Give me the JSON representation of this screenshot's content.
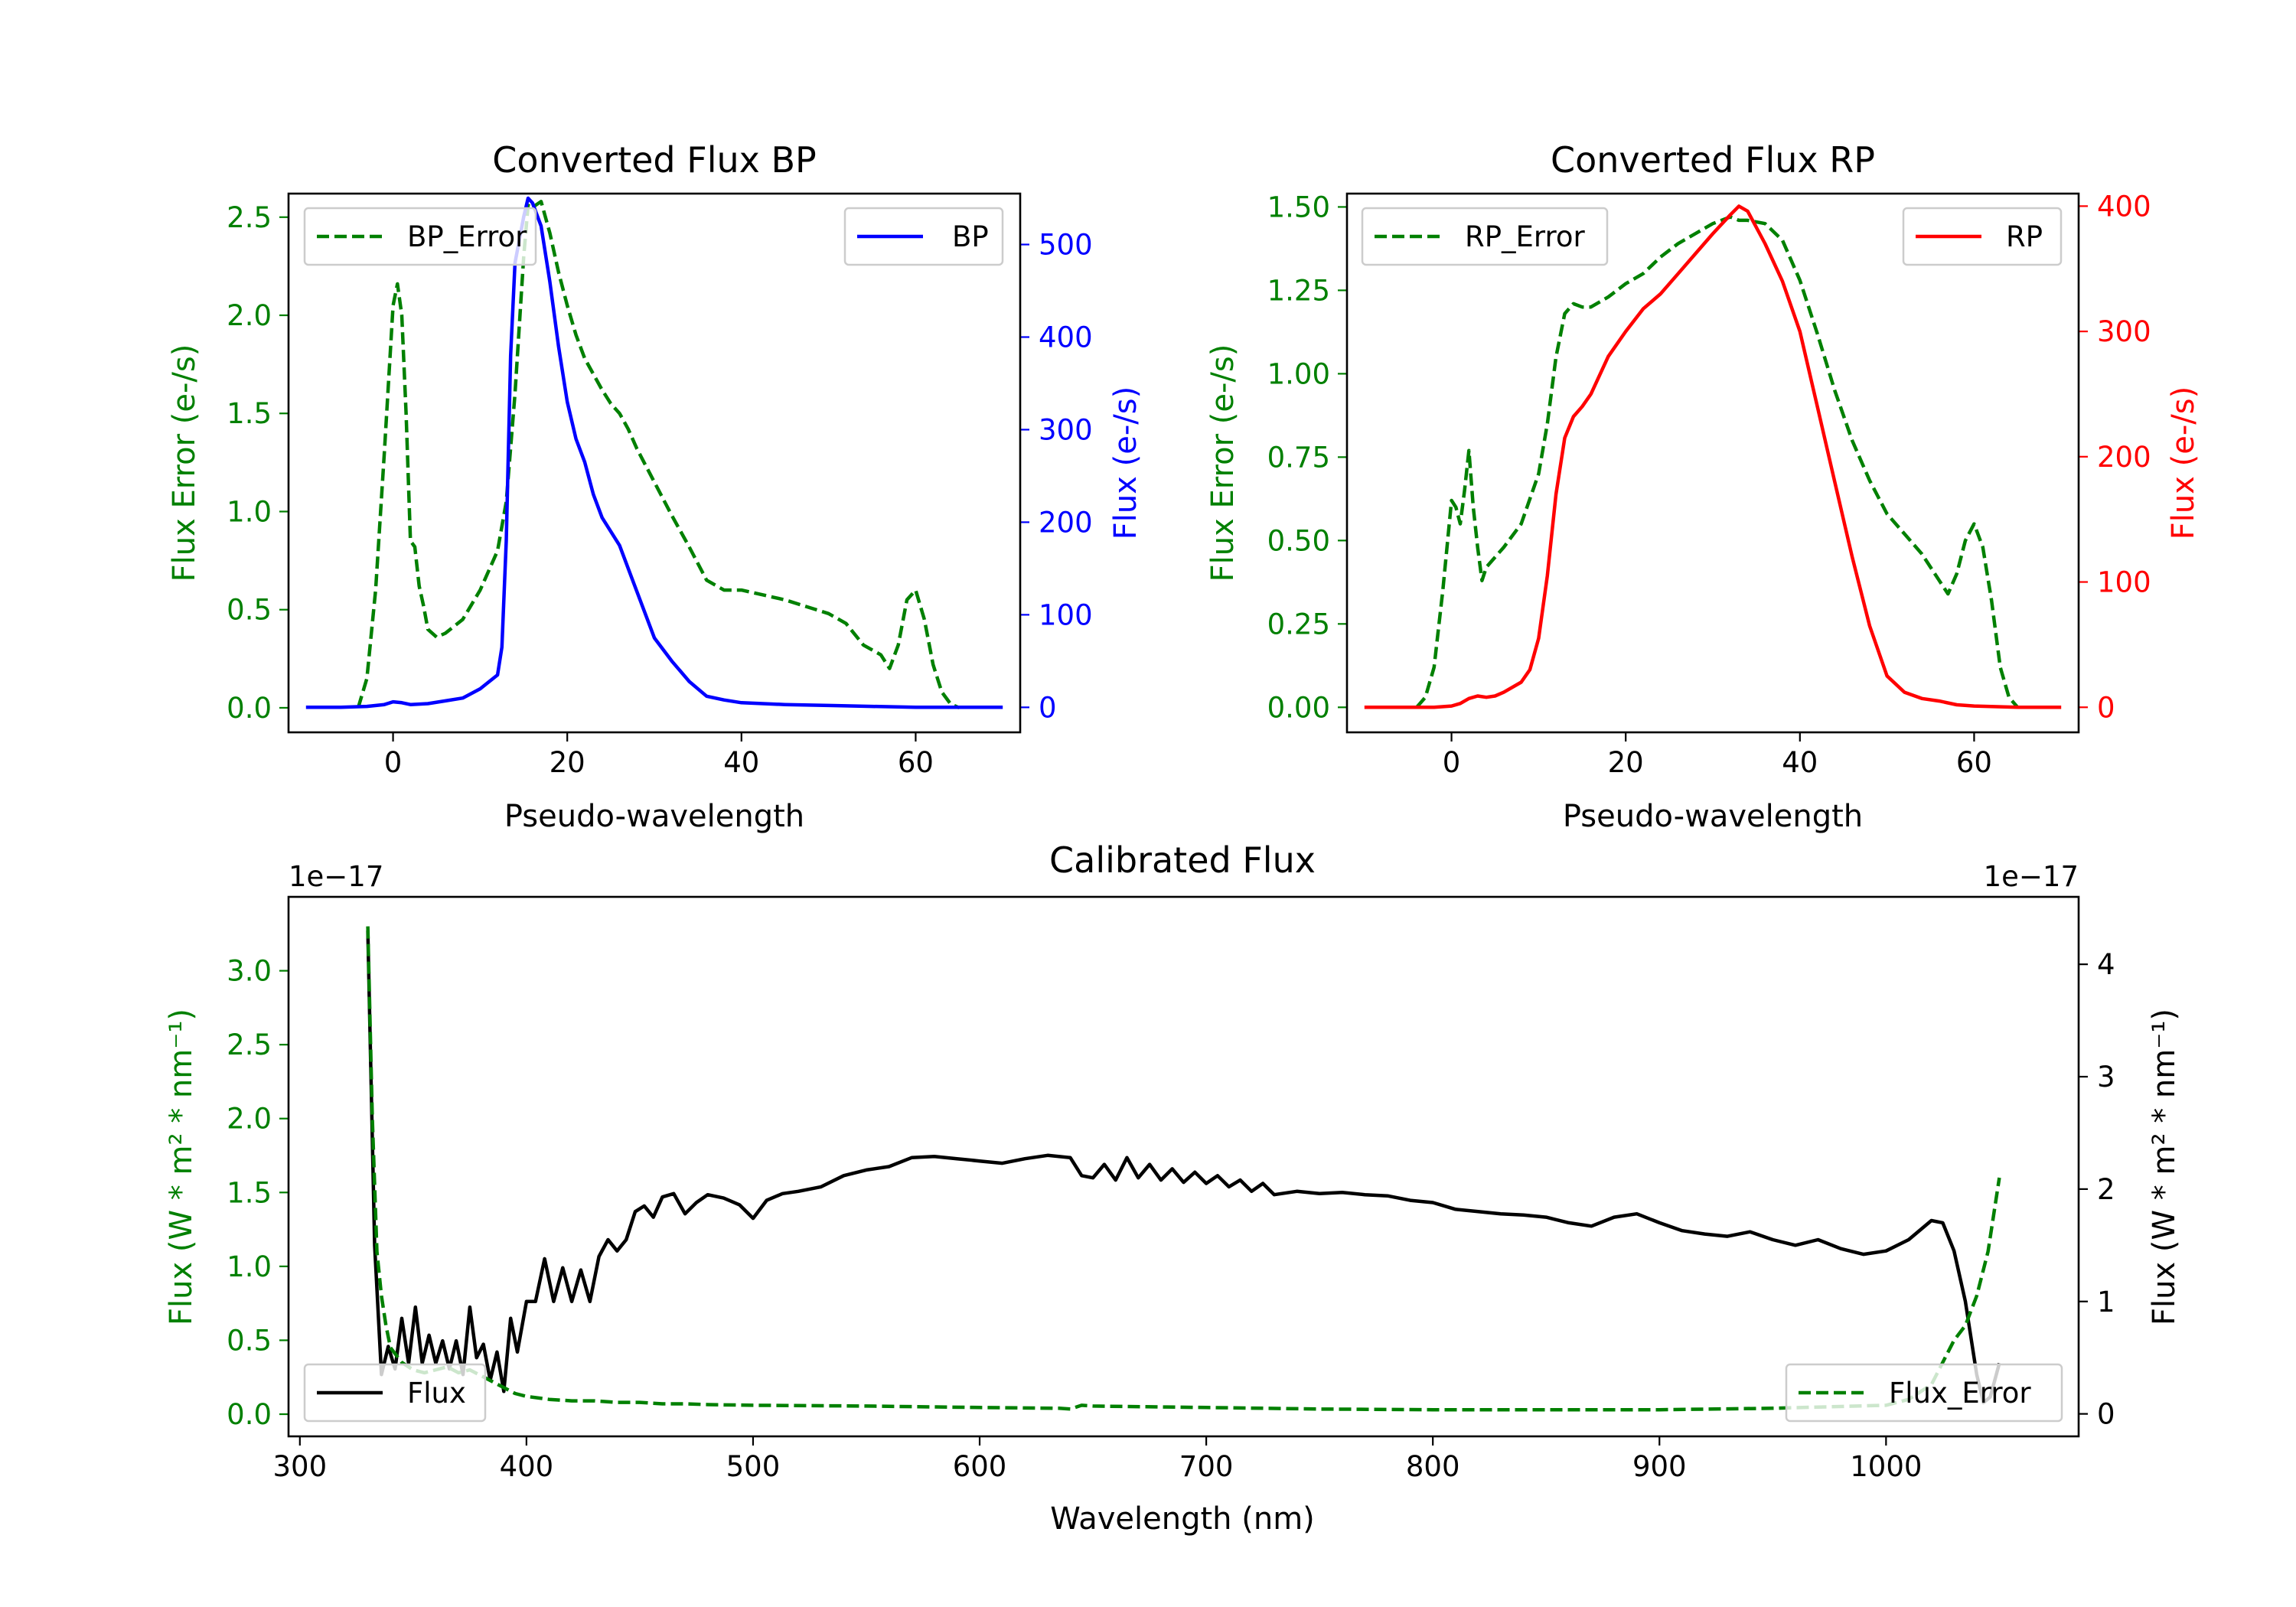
{
  "colors": {
    "green": "#008000",
    "blue": "#0000ff",
    "red": "#ff0000",
    "black": "#000000"
  },
  "chart_data": [
    {
      "id": "bp",
      "type": "line",
      "title": "Converted Flux BP",
      "xlabel": "Pseudo-wavelength",
      "xlim": [
        -12,
        72
      ],
      "xticks": [
        0,
        20,
        40,
        60
      ],
      "left_axis": {
        "label": "Flux Error (e-/s)",
        "color": "#008000",
        "ylim": [
          -0.125,
          2.62
        ],
        "ticks": [
          0.0,
          0.5,
          1.0,
          1.5,
          2.0,
          2.5
        ],
        "tick_labels": [
          "0.0",
          "0.5",
          "1.0",
          "1.5",
          "2.0",
          "2.5"
        ]
      },
      "right_axis": {
        "label": "Flux (e-/s)",
        "color": "#0000ff",
        "ylim": [
          -27,
          555
        ],
        "ticks": [
          0,
          100,
          200,
          300,
          400,
          500
        ],
        "tick_labels": [
          "0",
          "100",
          "200",
          "300",
          "400",
          "500"
        ]
      },
      "series": [
        {
          "name": "BP_Error",
          "axis": "left",
          "style": "dashed",
          "color": "#008000",
          "legend": "top-left",
          "x": [
            -4,
            -3,
            -2,
            -1,
            0,
            0.5,
            1,
            1.5,
            2,
            2.5,
            3,
            3.5,
            4,
            5,
            6,
            8,
            10,
            12,
            13,
            14,
            15,
            15.5,
            16,
            17,
            18,
            19,
            20,
            21,
            22,
            23,
            24,
            25,
            26,
            27,
            28,
            30,
            32,
            34,
            36,
            38,
            40,
            45,
            50,
            52,
            54,
            56,
            57,
            58,
            59,
            60,
            61,
            62,
            63,
            64,
            65
          ],
          "y": [
            0.0,
            0.15,
            0.6,
            1.3,
            2.05,
            2.16,
            2.0,
            1.5,
            0.85,
            0.82,
            0.62,
            0.52,
            0.4,
            0.36,
            0.38,
            0.45,
            0.6,
            0.8,
            1.05,
            1.6,
            2.3,
            2.56,
            2.55,
            2.58,
            2.42,
            2.22,
            2.05,
            1.9,
            1.78,
            1.7,
            1.62,
            1.55,
            1.5,
            1.42,
            1.32,
            1.15,
            0.98,
            0.82,
            0.65,
            0.6,
            0.6,
            0.55,
            0.48,
            0.43,
            0.32,
            0.27,
            0.2,
            0.32,
            0.55,
            0.6,
            0.45,
            0.22,
            0.08,
            0.02,
            0.0
          ]
        },
        {
          "name": "BP",
          "axis": "right",
          "style": "solid",
          "color": "#0000ff",
          "legend": "top-right",
          "x": [
            -10,
            -6,
            -3,
            -1,
            0,
            1,
            2,
            4,
            6,
            8,
            10,
            12,
            12.5,
            13,
            13.5,
            14,
            15,
            15.5,
            16,
            17,
            18,
            19,
            20,
            21,
            22,
            23,
            24,
            26,
            28,
            30,
            32,
            34,
            36,
            38,
            40,
            45,
            50,
            55,
            60,
            65,
            70
          ],
          "y": [
            0,
            0,
            1,
            3,
            6,
            5,
            3,
            4,
            7,
            10,
            20,
            35,
            65,
            180,
            380,
            480,
            530,
            550,
            545,
            520,
            460,
            390,
            330,
            290,
            265,
            230,
            205,
            175,
            125,
            75,
            50,
            28,
            12,
            8,
            5,
            3,
            2,
            1,
            0,
            0,
            0
          ]
        }
      ]
    },
    {
      "id": "rp",
      "type": "line",
      "title": "Converted Flux RP",
      "xlabel": "Pseudo-wavelength",
      "xlim": [
        -12,
        72
      ],
      "xticks": [
        0,
        20,
        40,
        60
      ],
      "left_axis": {
        "label": "Flux Error (e-/s)",
        "color": "#008000",
        "ylim": [
          -0.075,
          1.54
        ],
        "ticks": [
          0.0,
          0.25,
          0.5,
          0.75,
          1.0,
          1.25,
          1.5
        ],
        "tick_labels": [
          "0.00",
          "0.25",
          "0.50",
          "0.75",
          "1.00",
          "1.25",
          "1.50"
        ]
      },
      "right_axis": {
        "label": "Flux (e-/s)",
        "color": "#ff0000",
        "ylim": [
          -20,
          410
        ],
        "ticks": [
          0,
          100,
          200,
          300,
          400
        ],
        "tick_labels": [
          "0",
          "100",
          "200",
          "300",
          "400"
        ]
      },
      "series": [
        {
          "name": "RP_Error",
          "axis": "left",
          "style": "dashed",
          "color": "#008000",
          "legend": "top-left",
          "x": [
            -4,
            -3,
            -2,
            -1,
            0,
            0.5,
            1,
            1.5,
            2,
            2.5,
            3,
            3.5,
            4,
            5,
            6,
            8,
            10,
            11,
            12,
            13,
            14,
            15,
            16,
            18,
            20,
            22,
            24,
            26,
            28,
            30,
            32,
            33,
            34,
            36,
            38,
            40,
            42,
            44,
            46,
            48,
            50,
            52,
            54,
            56,
            57,
            58,
            59,
            60,
            61,
            62,
            63,
            64,
            65
          ],
          "y": [
            0.0,
            0.03,
            0.12,
            0.35,
            0.62,
            0.6,
            0.55,
            0.65,
            0.77,
            0.6,
            0.48,
            0.38,
            0.42,
            0.45,
            0.48,
            0.55,
            0.7,
            0.85,
            1.05,
            1.18,
            1.21,
            1.2,
            1.2,
            1.23,
            1.27,
            1.3,
            1.35,
            1.39,
            1.42,
            1.45,
            1.47,
            1.46,
            1.46,
            1.45,
            1.4,
            1.28,
            1.12,
            0.95,
            0.8,
            0.68,
            0.58,
            0.52,
            0.46,
            0.38,
            0.34,
            0.4,
            0.5,
            0.55,
            0.48,
            0.32,
            0.12,
            0.03,
            0.0
          ]
        },
        {
          "name": "RP",
          "axis": "right",
          "style": "solid",
          "color": "#ff0000",
          "legend": "top-right",
          "x": [
            -10,
            -5,
            -2,
            0,
            1,
            2,
            3,
            4,
            5,
            6,
            8,
            9,
            10,
            11,
            12,
            13,
            14,
            15,
            16,
            18,
            20,
            22,
            24,
            26,
            28,
            30,
            32,
            33,
            34,
            36,
            38,
            40,
            42,
            44,
            46,
            48,
            50,
            52,
            54,
            56,
            58,
            60,
            65,
            70
          ],
          "y": [
            0,
            0,
            0,
            1,
            3,
            7,
            9,
            8,
            9,
            12,
            20,
            30,
            55,
            105,
            170,
            215,
            232,
            240,
            250,
            280,
            300,
            318,
            330,
            346,
            362,
            378,
            393,
            400,
            396,
            370,
            340,
            300,
            240,
            180,
            120,
            65,
            25,
            12,
            7,
            5,
            2,
            1,
            0,
            0
          ]
        }
      ]
    },
    {
      "id": "calibrated",
      "type": "line",
      "title": "Calibrated Flux",
      "xlabel": "Wavelength (nm)",
      "xlim": [
        295,
        1085
      ],
      "xticks": [
        300,
        400,
        500,
        600,
        700,
        800,
        900,
        1000
      ],
      "left_axis": {
        "label": "Flux (W * m² * nm⁻¹)",
        "color": "#008000",
        "offset_label": "1e−17",
        "ylim": [
          -0.15,
          3.5
        ],
        "ticks": [
          0.0,
          0.5,
          1.0,
          1.5,
          2.0,
          2.5,
          3.0
        ],
        "tick_labels": [
          "0.0",
          "0.5",
          "1.0",
          "1.5",
          "2.0",
          "2.5",
          "3.0"
        ]
      },
      "right_axis": {
        "label": "Flux (W * m² * nm⁻¹)",
        "color": "#000000",
        "offset_label": "1e−17",
        "ylim": [
          -0.2,
          4.6
        ],
        "ticks": [
          0,
          1,
          2,
          3,
          4
        ],
        "tick_labels": [
          "0",
          "1",
          "2",
          "3",
          "4"
        ]
      },
      "series": [
        {
          "name": "Flux",
          "axis": "right",
          "style": "solid",
          "color": "#000000",
          "legend": "bottom-left",
          "x": [
            330,
            333,
            336,
            339,
            342,
            345,
            348,
            351,
            354,
            357,
            360,
            363,
            366,
            369,
            372,
            375,
            378,
            381,
            384,
            387,
            390,
            393,
            396,
            400,
            404,
            408,
            412,
            416,
            420,
            424,
            428,
            432,
            436,
            440,
            444,
            448,
            452,
            456,
            460,
            465,
            470,
            475,
            480,
            487,
            494,
            500,
            506,
            513,
            520,
            530,
            540,
            550,
            560,
            570,
            580,
            590,
            600,
            610,
            620,
            630,
            640,
            645,
            650,
            655,
            660,
            665,
            670,
            675,
            680,
            685,
            690,
            695,
            700,
            705,
            710,
            715,
            720,
            725,
            730,
            740,
            750,
            760,
            770,
            780,
            790,
            800,
            810,
            820,
            830,
            840,
            850,
            860,
            870,
            880,
            890,
            900,
            910,
            920,
            930,
            940,
            950,
            960,
            970,
            980,
            990,
            1000,
            1010,
            1020,
            1025,
            1030,
            1035,
            1040,
            1043,
            1046,
            1050
          ],
          "y": [
            4.3,
            1.5,
            0.35,
            0.6,
            0.4,
            0.85,
            0.45,
            0.95,
            0.45,
            0.7,
            0.45,
            0.65,
            0.4,
            0.65,
            0.35,
            0.95,
            0.5,
            0.62,
            0.3,
            0.55,
            0.2,
            0.85,
            0.55,
            1.0,
            1.0,
            1.38,
            1.0,
            1.3,
            1.0,
            1.28,
            1.0,
            1.4,
            1.55,
            1.45,
            1.55,
            1.8,
            1.85,
            1.75,
            1.93,
            1.96,
            1.78,
            1.88,
            1.95,
            1.92,
            1.86,
            1.74,
            1.9,
            1.96,
            1.98,
            2.02,
            2.12,
            2.17,
            2.2,
            2.28,
            2.29,
            2.27,
            2.25,
            2.23,
            2.27,
            2.3,
            2.28,
            2.12,
            2.1,
            2.22,
            2.08,
            2.28,
            2.1,
            2.22,
            2.08,
            2.18,
            2.06,
            2.15,
            2.05,
            2.12,
            2.02,
            2.08,
            1.98,
            2.05,
            1.95,
            1.98,
            1.96,
            1.97,
            1.95,
            1.94,
            1.9,
            1.88,
            1.82,
            1.8,
            1.78,
            1.77,
            1.75,
            1.7,
            1.67,
            1.75,
            1.78,
            1.7,
            1.63,
            1.6,
            1.58,
            1.62,
            1.55,
            1.5,
            1.55,
            1.47,
            1.42,
            1.45,
            1.55,
            1.72,
            1.7,
            1.45,
            1.0,
            0.35,
            0.1,
            0.15,
            0.45
          ]
        },
        {
          "name": "Flux_Error",
          "axis": "left",
          "style": "dashed",
          "color": "#008000",
          "legend": "bottom-right",
          "x": [
            330,
            332,
            334,
            336,
            338,
            340,
            345,
            350,
            355,
            360,
            365,
            370,
            375,
            380,
            385,
            390,
            395,
            400,
            410,
            420,
            430,
            440,
            450,
            460,
            470,
            480,
            500,
            550,
            600,
            635,
            640,
            645,
            650,
            700,
            750,
            800,
            850,
            900,
            950,
            1000,
            1010,
            1020,
            1025,
            1030,
            1035,
            1040,
            1045,
            1050
          ],
          "y": [
            3.3,
            2.0,
            1.1,
            0.8,
            0.6,
            0.45,
            0.35,
            0.3,
            0.28,
            0.3,
            0.32,
            0.28,
            0.3,
            0.26,
            0.22,
            0.18,
            0.14,
            0.12,
            0.1,
            0.09,
            0.09,
            0.08,
            0.08,
            0.07,
            0.07,
            0.065,
            0.06,
            0.055,
            0.045,
            0.04,
            0.035,
            0.06,
            0.055,
            0.045,
            0.035,
            0.03,
            0.03,
            0.03,
            0.04,
            0.06,
            0.1,
            0.2,
            0.35,
            0.5,
            0.6,
            0.8,
            1.1,
            1.6
          ]
        }
      ]
    }
  ]
}
